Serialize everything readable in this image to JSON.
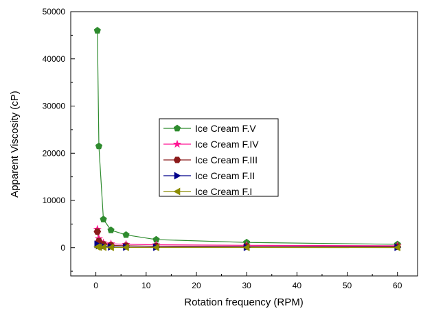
{
  "chart_data": {
    "type": "scatter",
    "xlabel": "Rotation frequency (RPM)",
    "ylabel": "Apparent Viscosity (cP)",
    "xlim": [
      -5,
      64
    ],
    "ylim": [
      -6000,
      50000
    ],
    "xticks": [
      0,
      10,
      20,
      30,
      40,
      50,
      60
    ],
    "yticks": [
      0,
      10000,
      20000,
      30000,
      40000,
      50000
    ],
    "lines_connect_points": true,
    "legend_position": "center-right",
    "series": [
      {
        "name": "Ice Cream F.V",
        "color": "#2e8b2e",
        "marker": "pentagon",
        "x": [
          0.3,
          0.6,
          1.5,
          3,
          6,
          12,
          30,
          60
        ],
        "y": [
          46000,
          21500,
          6000,
          3700,
          2700,
          1700,
          1100,
          700
        ]
      },
      {
        "name": "Ice Cream F.IV",
        "color": "#ff1493",
        "marker": "star",
        "x": [
          0.3,
          0.6,
          1.5,
          3,
          6,
          12,
          30,
          60
        ],
        "y": [
          3900,
          1900,
          1000,
          800,
          700,
          600,
          500,
          400
        ]
      },
      {
        "name": "Ice Cream F.III",
        "color": "#8b1a1a",
        "marker": "hexagon",
        "x": [
          0.3,
          0.6,
          1.5,
          3,
          6,
          12,
          30,
          60
        ],
        "y": [
          3400,
          1400,
          700,
          500,
          400,
          300,
          250,
          200
        ]
      },
      {
        "name": "Ice Cream F.II",
        "color": "#00008b",
        "marker": "triangle-right",
        "x": [
          0.3,
          0.6,
          1.5,
          3,
          6,
          12,
          30,
          60
        ],
        "y": [
          700,
          400,
          250,
          150,
          100,
          80,
          60,
          50
        ]
      },
      {
        "name": "Ice Cream F.I",
        "color": "#8b8b00",
        "marker": "triangle-left",
        "x": [
          0.3,
          0.6,
          1.5,
          3,
          6,
          12,
          30,
          60
        ],
        "y": [
          150,
          100,
          80,
          60,
          50,
          40,
          30,
          20
        ]
      }
    ]
  }
}
